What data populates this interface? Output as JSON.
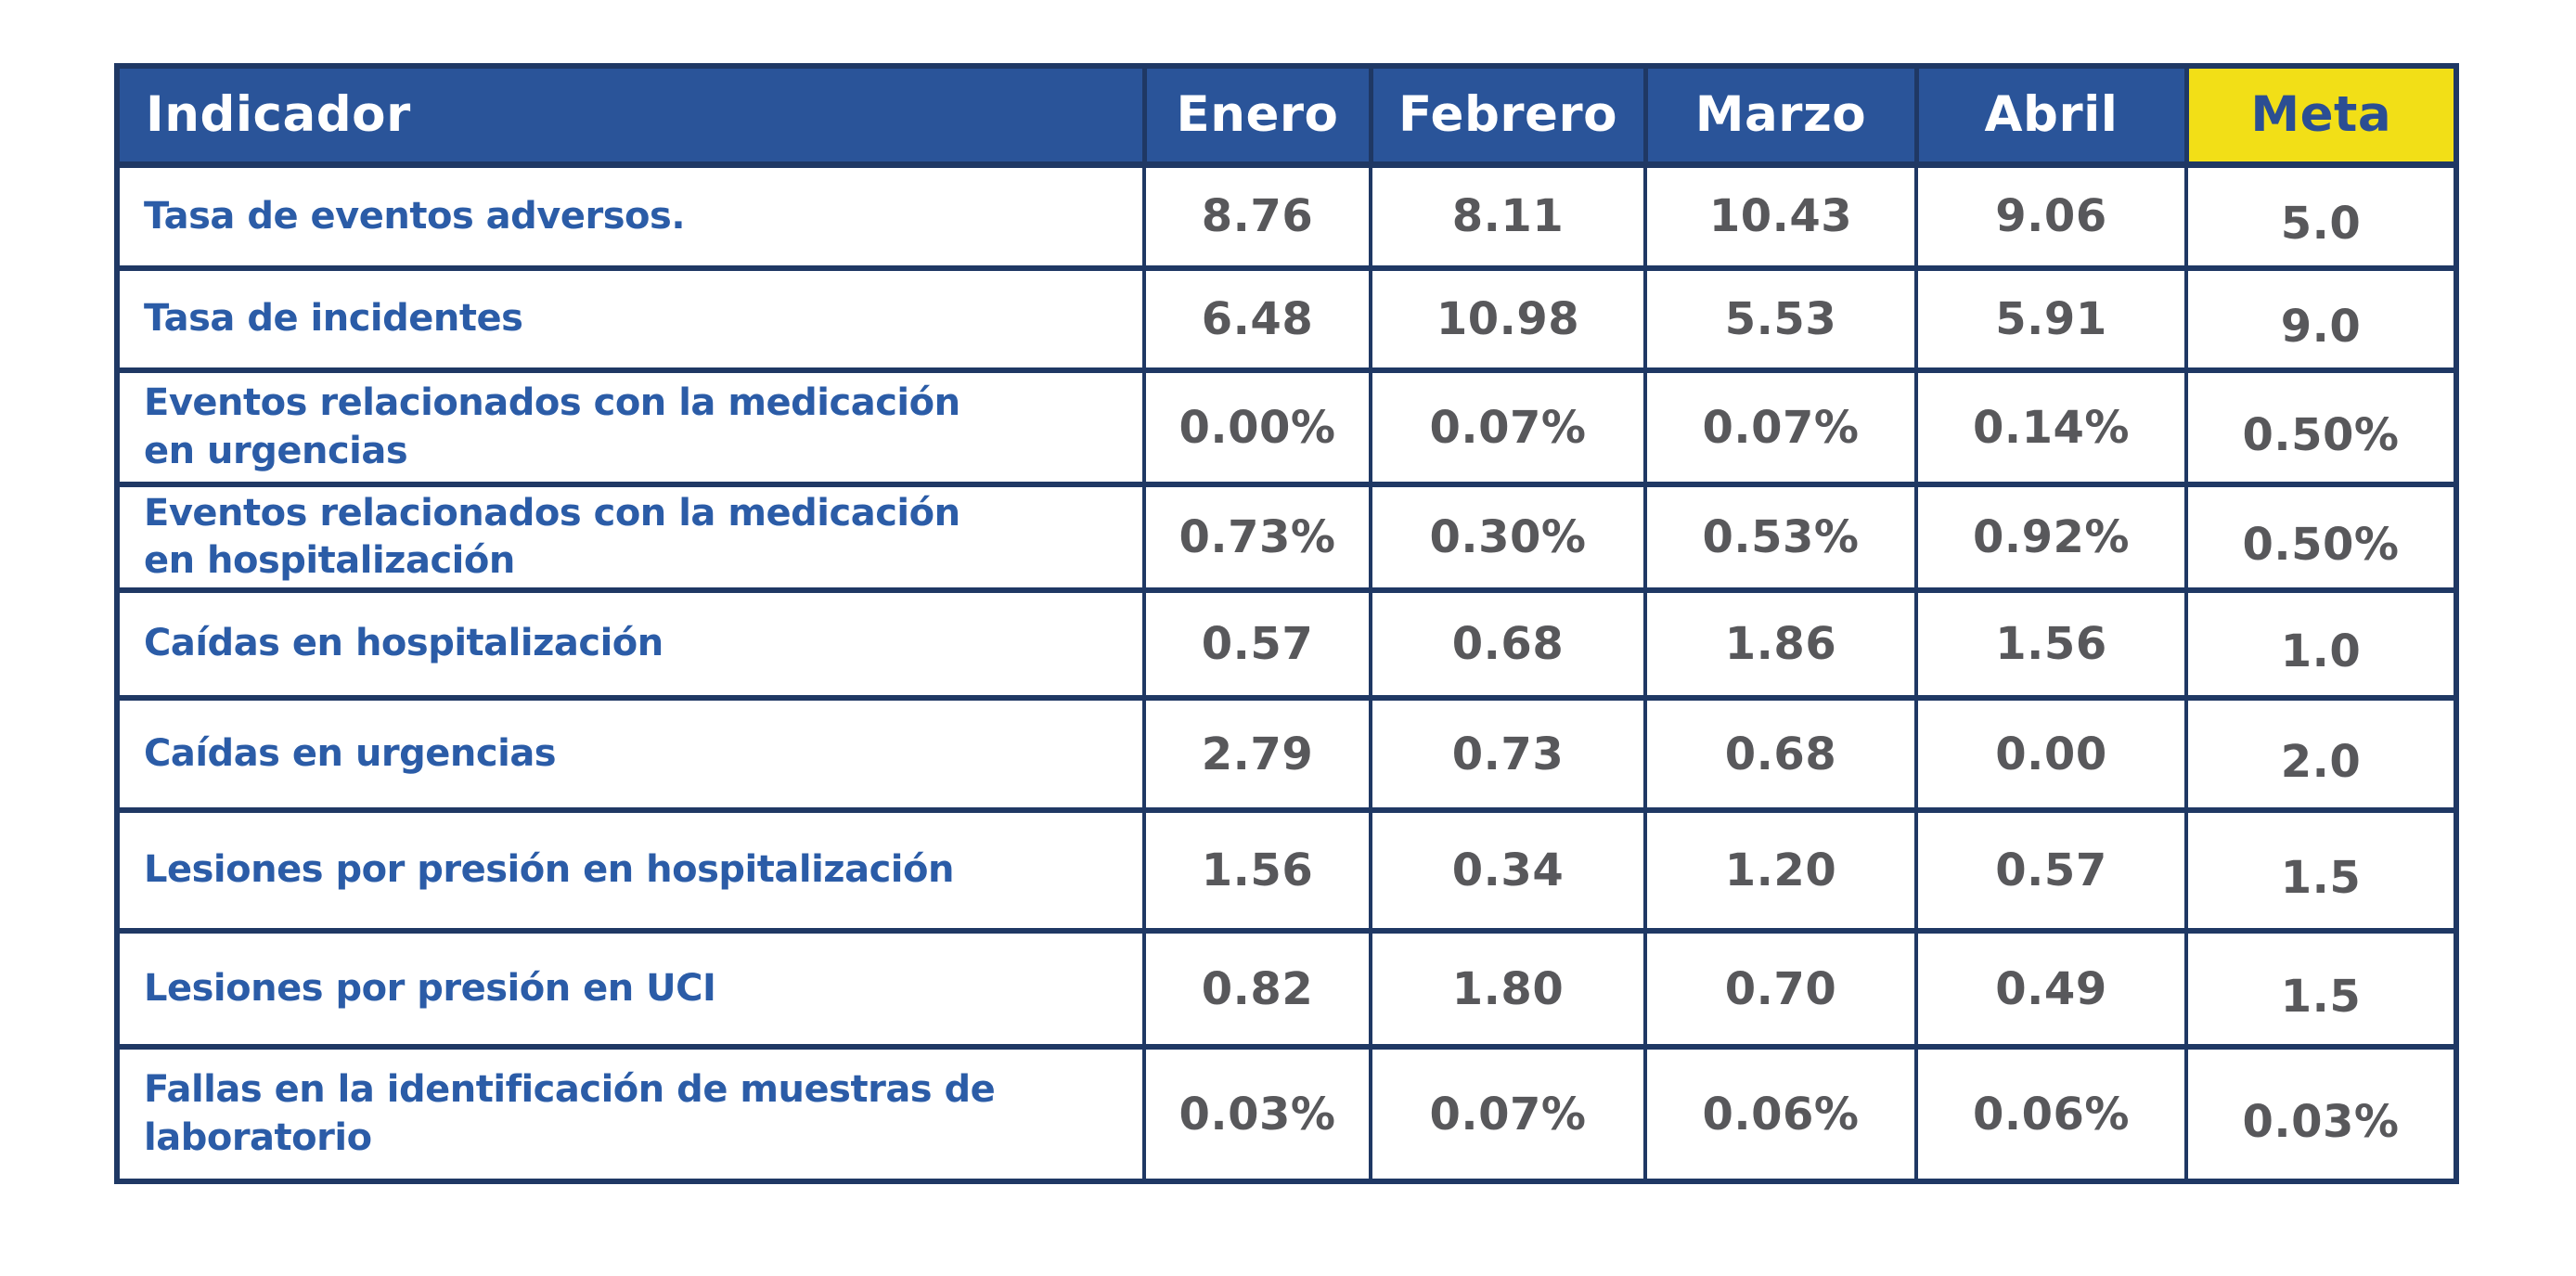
{
  "colors": {
    "header_blue": "#2A5499",
    "border_navy": "#1F3864",
    "meta_yellow": "#F2DF17",
    "meta_text_blue": "#2B4E93",
    "label_blue": "#2B5CA7",
    "value_gray": "#58585B"
  },
  "chart_data": {
    "type": "table",
    "columns": [
      "Indicador",
      "Enero",
      "Febrero",
      "Marzo",
      "Abril",
      "Meta"
    ],
    "rows": [
      {
        "label": "Tasa de eventos adversos.",
        "values": [
          "8.76",
          "8.11",
          "10.43",
          "9.06",
          "5.0"
        ]
      },
      {
        "label": "Tasa de incidentes",
        "values": [
          "6.48",
          "10.98",
          "5.53",
          "5.91",
          "9.0"
        ]
      },
      {
        "label": "Eventos relacionados con la medicación\nen urgencias",
        "values": [
          "0.00%",
          "0.07%",
          "0.07%",
          "0.14%",
          "0.50%"
        ]
      },
      {
        "label": "Eventos relacionados con la medicación\nen hospitalización",
        "values": [
          "0.73%",
          "0.30%",
          "0.53%",
          "0.92%",
          "0.50%"
        ]
      },
      {
        "label": "Caídas en hospitalización",
        "values": [
          "0.57",
          "0.68",
          "1.86",
          "1.56",
          "1.0"
        ]
      },
      {
        "label": "Caídas en urgencias",
        "values": [
          "2.79",
          "0.73",
          "0.68",
          "0.00",
          "2.0"
        ]
      },
      {
        "label": "Lesiones por presión en hospitalización",
        "values": [
          "1.56",
          "0.34",
          "1.20",
          "0.57",
          "1.5"
        ]
      },
      {
        "label": "Lesiones por presión en UCI",
        "values": [
          "0.82",
          "1.80",
          "0.70",
          "0.49",
          "1.5"
        ]
      },
      {
        "label": "Fallas en la identificación de muestras de\nlaboratorio",
        "values": [
          "0.03%",
          "0.07%",
          "0.06%",
          "0.06%",
          "0.03%"
        ]
      }
    ],
    "layout_hints": {
      "highlighted_column": "Meta",
      "grid": "on",
      "header_text_color": "#FFFFFF"
    }
  }
}
